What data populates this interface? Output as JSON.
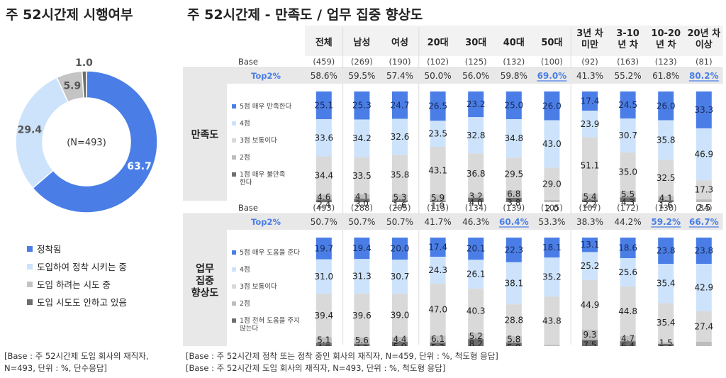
{
  "left": {
    "title": "주 52시간제 시행여부",
    "donut_center_label": "(N=493)",
    "base_note": [
      "[Base :  주 52시간제 도입 회사의 재직자,",
      "N=493, 단위 : %, 단수응답]"
    ]
  },
  "right": {
    "title": "주 52시간제 - 만족도 / 업무 집중 향상도",
    "base_notes": [
      "[Base :  주 52시간제 정착 또는 정착 중인 회사의 재직자, N=459, 단위 : %, 척도형 응답]",
      "[Base :  주 52시간제 도입 회사의 재직자, N=493, 단위 : %, 척도형 응답]"
    ]
  },
  "chart_data": [
    {
      "type": "pie",
      "variant": "donut",
      "categories": [
        "정착됨",
        "도입하여 정착 시키는 중",
        "도입 하려는 시도 중",
        "도입 시도도 안하고 있음"
      ],
      "values": [
        63.7,
        29.4,
        5.9,
        1.0
      ],
      "value_labels": [
        "63.7",
        "29.4",
        "5.9",
        "1.0"
      ],
      "colors": [
        "#4a7ee6",
        "#cde3fb",
        "#c4c4c4",
        "#6e6e6e"
      ],
      "legend": "bottom-left"
    },
    {
      "type": "bar",
      "variant": "stacked-100",
      "row_labels": [
        "만족도",
        "업무 집중 향상도"
      ],
      "row_label_lines": [
        [
          "만족도"
        ],
        [
          "업무",
          "집중",
          "향상도"
        ]
      ],
      "categories": [
        [
          "전체"
        ],
        [
          "남성"
        ],
        [
          "여성"
        ],
        [
          "20대"
        ],
        [
          "30대"
        ],
        [
          "40대"
        ],
        [
          "50대"
        ],
        [
          "3년 차",
          "미만"
        ],
        [
          "3-10",
          "년 차"
        ],
        [
          "10-20",
          "년 차"
        ],
        [
          "20년 차",
          "이상"
        ]
      ],
      "group_breaks_after": [
        0,
        2,
        6
      ],
      "base_label": "Base",
      "top_label": "Top2%",
      "colors": [
        "#4a7ee6",
        "#cde3fb",
        "#d9d9d9",
        "#bdbdbd",
        "#6e6e6e"
      ],
      "panels": [
        {
          "base": [
            "(459)",
            "(269)",
            "(190)",
            "(102)",
            "(125)",
            "(132)",
            "(100)",
            "(92)",
            "(163)",
            "(123)",
            "(81)"
          ],
          "top2": [
            "58.6%",
            "59.5%",
            "57.4%",
            "50.0%",
            "56.0%",
            "59.8%",
            "69.0%",
            "41.3%",
            "55.2%",
            "61.8%",
            "80.2%"
          ],
          "top2_highlight": [
            false,
            false,
            false,
            false,
            false,
            false,
            true,
            false,
            false,
            false,
            true
          ],
          "legend": [
            "5점 매우 만족한다",
            "4점",
            "3점 보통이다",
            "2점",
            "1점 매우 불만족 한다"
          ],
          "series": [
            {
              "name": "5점 매우 만족한다",
              "values": [
                25.1,
                25.3,
                24.7,
                26.5,
                23.2,
                25.0,
                26.0,
                17.4,
                24.5,
                26.0,
                33.3
              ]
            },
            {
              "name": "4점",
              "values": [
                33.6,
                34.2,
                32.6,
                23.5,
                32.8,
                34.8,
                43.0,
                23.9,
                30.7,
                35.8,
                46.9
              ]
            },
            {
              "name": "3점 보통이다",
              "values": [
                34.4,
                33.5,
                35.8,
                43.1,
                36.8,
                29.5,
                29.0,
                51.1,
                35.0,
                32.5,
                17.3
              ]
            },
            {
              "name": "2점",
              "values": [
                4.6,
                4.1,
                5.3,
                5.9,
                3.2,
                6.8,
                2.0,
                5.4,
                5.5,
                4.1,
                2.5
              ]
            },
            {
              "name": "1점 매우 불만족 한다",
              "values": [
                2.4,
                3.0,
                1.6,
                1.0,
                4.0,
                3.8,
                0.0,
                2.2,
                4.3,
                1.6,
                0.0
              ]
            }
          ],
          "labels": [
            [
              "25.1",
              "25.3",
              "24.7",
              "26.5",
              "23.2",
              "25.0",
              "26.0",
              "17.4",
              "24.5",
              "26.0",
              "33.3"
            ],
            [
              "33.6",
              "34.2",
              "32.6",
              "23.5",
              "32.8",
              "34.8",
              "43.0",
              "23.9",
              "30.7",
              "35.8",
              "46.9"
            ],
            [
              "34.4",
              "33.5",
              "35.8",
              "43.1",
              "36.8",
              "29.5",
              "29.0",
              "51.1",
              "35.0",
              "32.5",
              "17.3"
            ],
            [
              "4.6",
              "4.1",
              "5.3",
              "5.9",
              "3.2",
              "6.8",
              "2.0",
              "5.4",
              "5.5",
              "4.1",
              "2.5"
            ],
            [
              "2.4",
              "3.0",
              "1.6",
              "1.0",
              "4.0",
              "3.8",
              "",
              "2.2",
              "4.3",
              "1.6",
              ""
            ]
          ]
        },
        {
          "base": [
            "(493)",
            "(288)",
            "(205)",
            "(115)",
            "(134)",
            "(139)",
            "(105)",
            "(107)",
            "(172)",
            "(130)",
            "(84)"
          ],
          "top2": [
            "50.7%",
            "50.7%",
            "50.7%",
            "41.7%",
            "46.3%",
            "60.4%",
            "53.3%",
            "38.3%",
            "44.2%",
            "59.2%",
            "66.7%"
          ],
          "top2_highlight": [
            false,
            false,
            false,
            false,
            false,
            true,
            false,
            false,
            false,
            true,
            true
          ],
          "legend": [
            "5점 매우 도움을 준다",
            "4점",
            "3점 보통이다",
            "2점",
            "1점 전혀 도움을 주지 않는다"
          ],
          "series": [
            {
              "name": "5점 매우 도움을 준다",
              "values": [
                19.7,
                19.4,
                20.0,
                17.4,
                20.1,
                22.3,
                18.1,
                13.1,
                18.6,
                23.8,
                23.8
              ]
            },
            {
              "name": "4점",
              "values": [
                31.0,
                31.3,
                30.7,
                24.3,
                26.1,
                38.1,
                35.2,
                25.2,
                25.6,
                35.4,
                42.9
              ]
            },
            {
              "name": "3점 보통이다",
              "values": [
                39.4,
                39.6,
                39.0,
                47.0,
                40.3,
                28.8,
                43.8,
                44.9,
                44.8,
                35.4,
                27.4
              ]
            },
            {
              "name": "2점",
              "values": [
                5.1,
                5.6,
                4.4,
                6.1,
                5.2,
                5.8,
                2.9,
                9.3,
                4.7,
                1.5,
                6.0
              ]
            },
            {
              "name": "1점 전혀 도움을 주지 않는다",
              "values": [
                4.9,
                4.2,
                5.9,
                5.2,
                8.2,
                5.0,
                0.0,
                7.5,
                6.4,
                3.8,
                0.0
              ]
            }
          ],
          "labels": [
            [
              "19.7",
              "19.4",
              "20.0",
              "17.4",
              "20.1",
              "22.3",
              "18.1",
              "13.1",
              "18.6",
              "23.8",
              "23.8"
            ],
            [
              "31.0",
              "31.3",
              "30.7",
              "24.3",
              "26.1",
              "38.1",
              "35.2",
              "25.2",
              "25.6",
              "35.4",
              "42.9"
            ],
            [
              "39.4",
              "39.6",
              "39.0",
              "47.0",
              "40.3",
              "28.8",
              "43.8",
              "44.9",
              "44.8",
              "35.4",
              "27.4"
            ],
            [
              "5.1",
              "5.6",
              "4.4",
              "6.1",
              "5.2",
              "5.8",
              "2.9",
              "9.3",
              "4.7",
              "1.5",
              "6.0"
            ],
            [
              "4.9",
              "4.2",
              "5.9",
              "5.2",
              "8.2",
              "5.0",
              "",
              "7.5",
              "6.4",
              "3.8",
              ""
            ]
          ]
        }
      ]
    }
  ]
}
